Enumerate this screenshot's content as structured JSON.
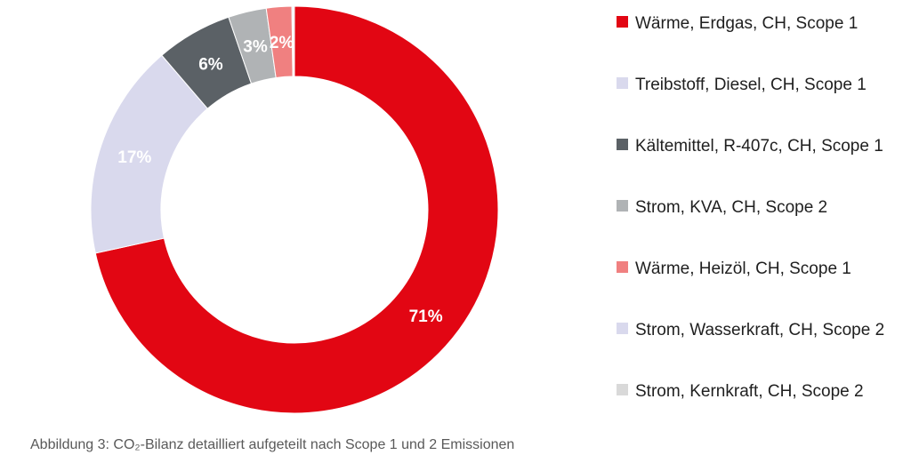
{
  "caption": "Abbildung 3: CO₂-Bilanz detailliert aufgeteilt nach Scope 1 und 2 Emissionen",
  "chart_data": {
    "type": "pie",
    "variant": "donut",
    "categories": [
      "Wärme, Erdgas, CH, Scope 1",
      "Treibstoff, Diesel, CH, Scope 1",
      "Kältemittel, R-407c, CH, Scope 1",
      "Strom, KVA, CH, Scope 2",
      "Wärme, Heizöl, CH, Scope 1",
      "Strom, Wasserkraft, CH, Scope 2",
      "Strom, Kernkraft, CH, Scope 2"
    ],
    "values": [
      71,
      17,
      6,
      3,
      2,
      0.1,
      0.1
    ],
    "data_labels": [
      "71%",
      "17%",
      "6%",
      "3%",
      "2%",
      "",
      ""
    ],
    "colors": [
      "#e20613",
      "#d9d9ed",
      "#5b6166",
      "#b0b3b5",
      "#f08080",
      "#d9d9ed",
      "#d9d9d9"
    ],
    "legend_position": "right"
  }
}
